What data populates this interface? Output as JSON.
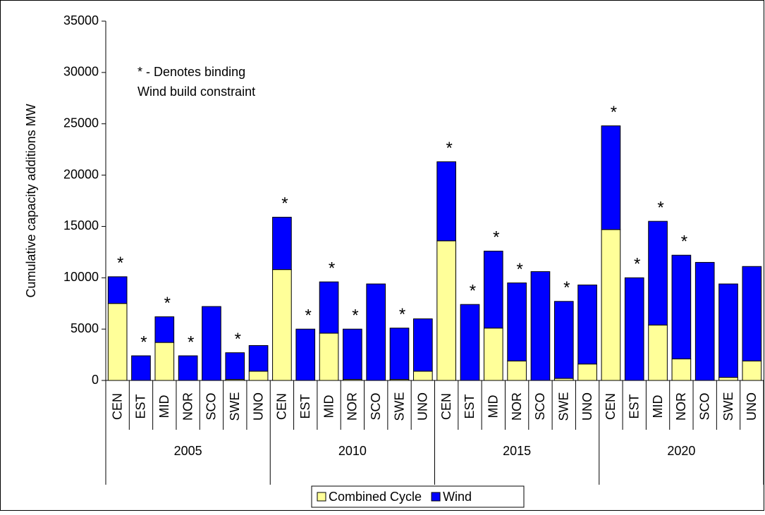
{
  "chart_data": {
    "type": "stacked-bar",
    "ylabel": "Cumulative capacity additions MW",
    "annotations": [
      "* - Denotes binding",
      "Wind build constraint"
    ],
    "groups": [
      "2005",
      "2010",
      "2015",
      "2020"
    ],
    "categories": [
      "CEN",
      "EST",
      "MID",
      "NOR",
      "SCO",
      "SWE",
      "UNO",
      "CEN",
      "EST",
      "MID",
      "NOR",
      "SCO",
      "SWE",
      "UNO",
      "CEN",
      "EST",
      "MID",
      "NOR",
      "SCO",
      "SWE",
      "UNO",
      "CEN",
      "EST",
      "MID",
      "NOR",
      "SCO",
      "SWE",
      "UNO"
    ],
    "series": [
      {
        "name": "Combined Cycle",
        "color": "#ffff99",
        "values": [
          7500,
          0,
          3700,
          0,
          0,
          100,
          900,
          10800,
          0,
          4600,
          100,
          0,
          100,
          900,
          13600,
          0,
          5100,
          1900,
          0,
          200,
          1600,
          14700,
          0,
          5400,
          2100,
          0,
          300,
          1900
        ]
      },
      {
        "name": "Wind",
        "color": "#0000ff",
        "values": [
          2600,
          2400,
          2500,
          2400,
          7200,
          2600,
          2500,
          5100,
          5000,
          5000,
          4900,
          9400,
          5000,
          5100,
          7700,
          7400,
          7500,
          7600,
          10600,
          7500,
          7700,
          10100,
          10000,
          10100,
          10100,
          11500,
          9100,
          9200
        ]
      }
    ],
    "markers": [
      "*",
      "*",
      "*",
      "*",
      null,
      "*",
      null,
      "*",
      "*",
      "*",
      "*",
      null,
      "*",
      null,
      "*",
      "*",
      "*",
      "*",
      null,
      "*",
      null,
      "*",
      "*",
      "*",
      "*",
      null,
      null,
      null
    ],
    "ylim": [
      0,
      35000
    ],
    "yticks": [
      0,
      5000,
      10000,
      15000,
      20000,
      25000,
      30000,
      35000
    ],
    "grid": false
  }
}
